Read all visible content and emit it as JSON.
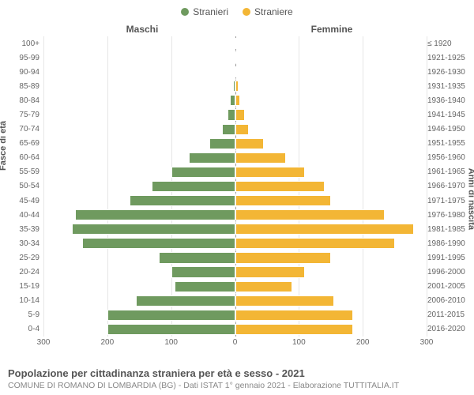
{
  "chart": {
    "type": "bar-pyramid",
    "legend": {
      "male": "Stranieri",
      "female": "Straniere"
    },
    "titles": {
      "left": "Maschi",
      "right": "Femmine"
    },
    "axis_labels": {
      "left": "Fasce di età",
      "right": "Anni di nascita"
    },
    "colors": {
      "male_fill": "#6f9a5f",
      "female_fill": "#f3b635",
      "bar_stroke": "#ffffff",
      "grid": "#e6e6e6",
      "center_line": "#999999",
      "background": "#ffffff",
      "text": "#555555",
      "tick_text": "#666666",
      "subtitle": "#888888"
    },
    "fonts": {
      "family": "Arial, Helvetica, sans-serif",
      "legend_size": 12,
      "title_size": 12,
      "tick_size": 10,
      "axis_label_size": 11,
      "footer_title_size": 13,
      "footer_sub_size": 10.5
    },
    "xlim": 300,
    "x_ticks": [
      300,
      200,
      100,
      0,
      100,
      200,
      300
    ],
    "rows": [
      {
        "age": "100+",
        "birth": "≤ 1920",
        "m": 0,
        "f": 0
      },
      {
        "age": "95-99",
        "birth": "1921-1925",
        "m": 0,
        "f": 0
      },
      {
        "age": "90-94",
        "birth": "1926-1930",
        "m": 0,
        "f": 0
      },
      {
        "age": "85-89",
        "birth": "1931-1935",
        "m": 3,
        "f": 5
      },
      {
        "age": "80-84",
        "birth": "1936-1940",
        "m": 8,
        "f": 8
      },
      {
        "age": "75-79",
        "birth": "1941-1945",
        "m": 12,
        "f": 15
      },
      {
        "age": "70-74",
        "birth": "1946-1950",
        "m": 20,
        "f": 22
      },
      {
        "age": "65-69",
        "birth": "1951-1955",
        "m": 40,
        "f": 45
      },
      {
        "age": "60-64",
        "birth": "1956-1960",
        "m": 72,
        "f": 80
      },
      {
        "age": "55-59",
        "birth": "1961-1965",
        "m": 100,
        "f": 110
      },
      {
        "age": "50-54",
        "birth": "1966-1970",
        "m": 130,
        "f": 140
      },
      {
        "age": "45-49",
        "birth": "1971-1975",
        "m": 165,
        "f": 150
      },
      {
        "age": "40-44",
        "birth": "1976-1980",
        "m": 250,
        "f": 235
      },
      {
        "age": "35-39",
        "birth": "1981-1985",
        "m": 255,
        "f": 280
      },
      {
        "age": "30-34",
        "birth": "1986-1990",
        "m": 240,
        "f": 250
      },
      {
        "age": "25-29",
        "birth": "1991-1995",
        "m": 120,
        "f": 150
      },
      {
        "age": "20-24",
        "birth": "1996-2000",
        "m": 100,
        "f": 110
      },
      {
        "age": "15-19",
        "birth": "2001-2005",
        "m": 95,
        "f": 90
      },
      {
        "age": "10-14",
        "birth": "2006-2010",
        "m": 155,
        "f": 155
      },
      {
        "age": "5-9",
        "birth": "2011-2015",
        "m": 200,
        "f": 185
      },
      {
        "age": "0-4",
        "birth": "2016-2020",
        "m": 200,
        "f": 185
      }
    ],
    "footer": {
      "title": "Popolazione per cittadinanza straniera per età e sesso - 2021",
      "subtitle": "COMUNE DI ROMANO DI LOMBARDIA (BG) - Dati ISTAT 1° gennaio 2021 - Elaborazione TUTTITALIA.IT"
    }
  }
}
